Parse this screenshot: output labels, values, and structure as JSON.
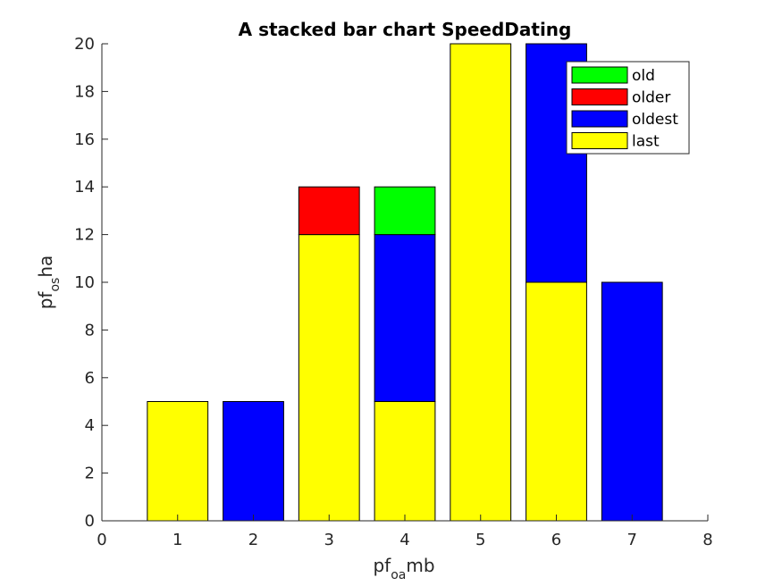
{
  "chart_data": {
    "type": "bar",
    "stacked": true,
    "title": "A stacked bar chart SpeedDating",
    "xlabel": {
      "main": "pf",
      "sub": "oa",
      "tail": "mb"
    },
    "ylabel": {
      "main": "pf",
      "sub": "os",
      "tail": "ha"
    },
    "xlim": [
      0,
      8
    ],
    "ylim": [
      0,
      20
    ],
    "xticks": [
      0,
      1,
      2,
      3,
      4,
      5,
      6,
      7,
      8
    ],
    "yticks": [
      0,
      2,
      4,
      6,
      8,
      10,
      12,
      14,
      16,
      18,
      20
    ],
    "x": [
      1,
      2,
      3,
      4,
      5,
      6,
      7
    ],
    "series": [
      {
        "name": "last",
        "color": "#ffff00",
        "values": [
          5,
          0,
          12,
          5,
          20,
          10,
          0
        ]
      },
      {
        "name": "oldest",
        "color": "#0000ff",
        "values": [
          0,
          5,
          0,
          7,
          0,
          10,
          10
        ]
      },
      {
        "name": "older",
        "color": "#ff0000",
        "values": [
          0,
          0,
          2,
          0,
          0,
          0,
          0
        ]
      },
      {
        "name": "old",
        "color": "#00ff00",
        "values": [
          0,
          0,
          0,
          2,
          0,
          0,
          0
        ]
      }
    ],
    "legend": {
      "location": "top-right",
      "order": [
        "old",
        "older",
        "oldest",
        "last"
      ]
    },
    "grid": false
  }
}
